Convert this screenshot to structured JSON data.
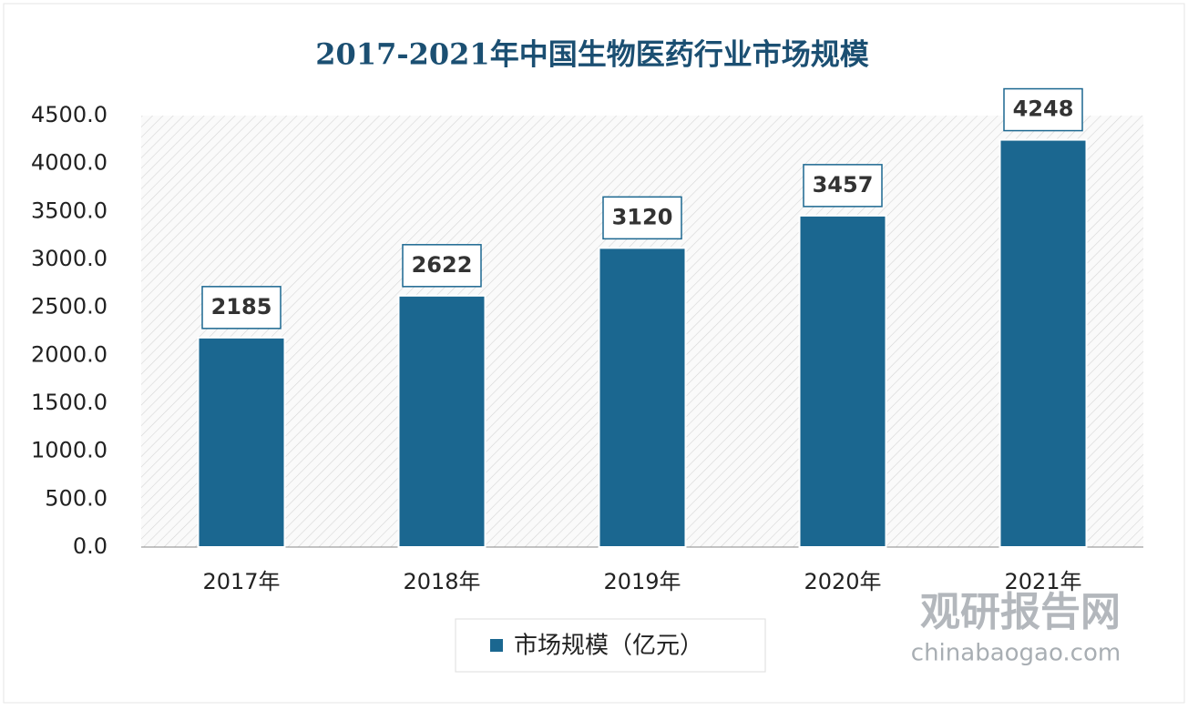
{
  "chart_data": {
    "type": "bar",
    "title": "2017-2021年中国生物医药行业市场规模",
    "categories": [
      "2017年",
      "2018年",
      "2019年",
      "2020年",
      "2021年"
    ],
    "series": [
      {
        "name": "市场规模（亿元）",
        "color": "#1b6790",
        "values": [
          2185,
          2622,
          3120,
          3457,
          4248
        ]
      }
    ],
    "ylim": [
      0,
      4500
    ],
    "yticks": [
      {
        "value": 0,
        "label": "0.0"
      },
      {
        "value": 500,
        "label": "500.0"
      },
      {
        "value": 1000,
        "label": "1000.0"
      },
      {
        "value": 1500,
        "label": "1500.0"
      },
      {
        "value": 2000,
        "label": "2000.0"
      },
      {
        "value": 2500,
        "label": "2500.0"
      },
      {
        "value": 3000,
        "label": "3000.0"
      },
      {
        "value": 3500,
        "label": "3500.0"
      },
      {
        "value": 4000,
        "label": "4000.0"
      },
      {
        "value": 4500,
        "label": "4500.0"
      }
    ],
    "legend": "bottom",
    "annotations": [
      "观研报告网",
      "chinabaogao.com"
    ]
  }
}
